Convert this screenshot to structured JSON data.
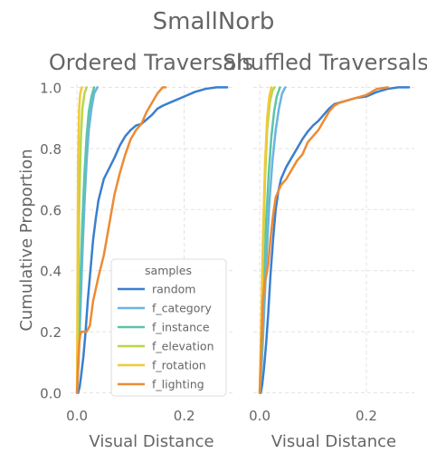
{
  "figure_title": "SmallNorb",
  "colors": {
    "random": "#3a7fcf",
    "f_category": "#6ab4e0",
    "f_instance": "#5cc4a8",
    "f_elevation": "#b8d64a",
    "f_rotation": "#f0c93a",
    "f_lighting": "#ee8a33",
    "grid": "#e2e2e2",
    "text": "#666666"
  },
  "chart_data": [
    {
      "type": "line",
      "title": "Ordered Traversals",
      "xlabel": "Visual Distance",
      "ylabel": "Cumulative Proportion",
      "xlim": [
        -0.012,
        0.29
      ],
      "ylim": [
        -0.01,
        1.01
      ],
      "xticks": [
        0.0,
        0.2
      ],
      "xtick_labels": [
        "0.0",
        "0.2"
      ],
      "yticks": [
        0.0,
        0.2,
        0.4,
        0.6,
        0.8,
        1.0
      ],
      "ytick_labels": [
        "0.0",
        "0.2",
        "0.4",
        "0.6",
        "0.8",
        "1.0"
      ],
      "grid": true,
      "legend": {
        "title": "samples",
        "position": "lower-right"
      },
      "series": [
        {
          "name": "random",
          "color_key": "random",
          "x": [
            0.002,
            0.005,
            0.008,
            0.012,
            0.016,
            0.02,
            0.025,
            0.03,
            0.035,
            0.04,
            0.05,
            0.06,
            0.07,
            0.08,
            0.09,
            0.1,
            0.11,
            0.12,
            0.13,
            0.14,
            0.15,
            0.16,
            0.18,
            0.2,
            0.22,
            0.24,
            0.26,
            0.28
          ],
          "y": [
            0.0,
            0.02,
            0.06,
            0.12,
            0.2,
            0.3,
            0.4,
            0.5,
            0.57,
            0.63,
            0.7,
            0.735,
            0.77,
            0.81,
            0.84,
            0.86,
            0.875,
            0.88,
            0.895,
            0.91,
            0.93,
            0.94,
            0.955,
            0.97,
            0.985,
            0.995,
            1.0,
            1.0
          ]
        },
        {
          "name": "f_category",
          "color_key": "f_category",
          "x": [
            0.0,
            0.003,
            0.006,
            0.01,
            0.014,
            0.018,
            0.022,
            0.027,
            0.032,
            0.038
          ],
          "y": [
            0.0,
            0.1,
            0.25,
            0.45,
            0.62,
            0.76,
            0.86,
            0.93,
            0.98,
            1.0
          ]
        },
        {
          "name": "f_instance",
          "color_key": "f_instance",
          "x": [
            0.0,
            0.003,
            0.006,
            0.01,
            0.014,
            0.018,
            0.022,
            0.027,
            0.032
          ],
          "y": [
            0.0,
            0.15,
            0.35,
            0.56,
            0.72,
            0.84,
            0.92,
            0.97,
            1.0
          ]
        },
        {
          "name": "f_elevation",
          "color_key": "f_elevation",
          "x": [
            0.0,
            0.002,
            0.004,
            0.007,
            0.01,
            0.014,
            0.018
          ],
          "y": [
            0.0,
            0.3,
            0.6,
            0.82,
            0.93,
            0.98,
            1.0
          ]
        },
        {
          "name": "f_rotation",
          "color_key": "f_rotation",
          "x": [
            0.0,
            0.001,
            0.002,
            0.004,
            0.006,
            0.009
          ],
          "y": [
            0.0,
            0.4,
            0.75,
            0.93,
            0.98,
            1.0
          ]
        },
        {
          "name": "f_lighting",
          "color_key": "f_lighting",
          "x": [
            0.0,
            0.002,
            0.004,
            0.006,
            0.008,
            0.012,
            0.018,
            0.024,
            0.03,
            0.04,
            0.05,
            0.06,
            0.07,
            0.08,
            0.09,
            0.1,
            0.11,
            0.12,
            0.13,
            0.14,
            0.15,
            0.16,
            0.165
          ],
          "y": [
            0.0,
            0.1,
            0.16,
            0.19,
            0.2,
            0.2,
            0.2,
            0.22,
            0.3,
            0.38,
            0.45,
            0.55,
            0.65,
            0.72,
            0.78,
            0.83,
            0.86,
            0.88,
            0.92,
            0.95,
            0.98,
            1.0,
            1.0
          ]
        }
      ]
    },
    {
      "type": "line",
      "title": "Shuffled Traversals",
      "xlabel": "Visual Distance",
      "ylabel": "",
      "xlim": [
        -0.012,
        0.29
      ],
      "ylim": [
        -0.01,
        1.01
      ],
      "xticks": [
        0.0,
        0.2
      ],
      "xtick_labels": [
        "0.0",
        "0.2"
      ],
      "yticks": [
        0.0,
        0.2,
        0.4,
        0.6,
        0.8,
        1.0
      ],
      "ytick_labels": [],
      "grid": true,
      "legend": null,
      "series": [
        {
          "name": "random",
          "color_key": "random",
          "x": [
            0.002,
            0.005,
            0.008,
            0.012,
            0.016,
            0.02,
            0.025,
            0.03,
            0.035,
            0.04,
            0.05,
            0.06,
            0.07,
            0.08,
            0.09,
            0.1,
            0.11,
            0.12,
            0.13,
            0.14,
            0.15,
            0.16,
            0.18,
            0.2,
            0.22,
            0.24,
            0.26,
            0.28
          ],
          "y": [
            0.0,
            0.03,
            0.08,
            0.16,
            0.26,
            0.38,
            0.5,
            0.6,
            0.66,
            0.7,
            0.74,
            0.77,
            0.8,
            0.83,
            0.855,
            0.875,
            0.89,
            0.91,
            0.93,
            0.945,
            0.95,
            0.955,
            0.965,
            0.97,
            0.985,
            0.995,
            1.0,
            1.0
          ]
        },
        {
          "name": "f_category",
          "color_key": "f_category",
          "x": [
            0.0,
            0.004,
            0.008,
            0.013,
            0.018,
            0.024,
            0.03,
            0.036,
            0.042,
            0.048
          ],
          "y": [
            0.0,
            0.1,
            0.25,
            0.45,
            0.62,
            0.76,
            0.86,
            0.93,
            0.98,
            1.0
          ]
        },
        {
          "name": "f_instance",
          "color_key": "f_instance",
          "x": [
            0.0,
            0.004,
            0.008,
            0.012,
            0.017,
            0.022,
            0.027,
            0.032,
            0.038
          ],
          "y": [
            0.0,
            0.15,
            0.35,
            0.56,
            0.72,
            0.84,
            0.92,
            0.97,
            1.0
          ]
        },
        {
          "name": "f_elevation",
          "color_key": "f_elevation",
          "x": [
            0.0,
            0.003,
            0.006,
            0.01,
            0.014,
            0.019,
            0.024,
            0.028
          ],
          "y": [
            0.0,
            0.2,
            0.45,
            0.7,
            0.86,
            0.95,
            0.99,
            1.0
          ]
        },
        {
          "name": "f_rotation",
          "color_key": "f_rotation",
          "x": [
            0.0,
            0.003,
            0.006,
            0.01,
            0.014,
            0.018,
            0.022
          ],
          "y": [
            0.0,
            0.25,
            0.5,
            0.75,
            0.9,
            0.97,
            1.0
          ]
        },
        {
          "name": "f_lighting",
          "color_key": "f_lighting",
          "x": [
            0.0,
            0.002,
            0.004,
            0.006,
            0.009,
            0.012,
            0.016,
            0.02,
            0.025,
            0.03,
            0.035,
            0.04,
            0.05,
            0.06,
            0.07,
            0.08,
            0.09,
            0.1,
            0.11,
            0.12,
            0.13,
            0.14,
            0.15,
            0.16,
            0.18,
            0.2,
            0.22,
            0.24
          ],
          "y": [
            0.0,
            0.1,
            0.2,
            0.3,
            0.36,
            0.38,
            0.42,
            0.5,
            0.58,
            0.64,
            0.66,
            0.68,
            0.7,
            0.73,
            0.76,
            0.78,
            0.82,
            0.84,
            0.86,
            0.89,
            0.92,
            0.94,
            0.95,
            0.955,
            0.965,
            0.975,
            0.995,
            1.0
          ]
        }
      ]
    }
  ]
}
